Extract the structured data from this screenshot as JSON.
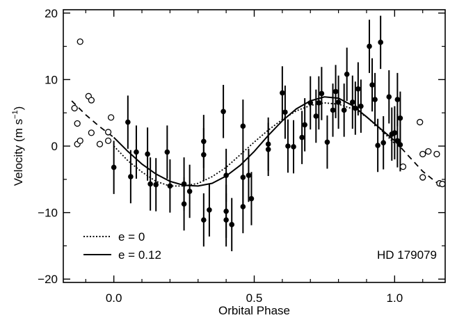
{
  "chart_data": {
    "type": "scatter",
    "xlabel": "Orbital Phase",
    "ylabel": "Velocity (m s",
    "ylabel_sup": "−1",
    "ylabel_close": ")",
    "xlim": [
      -0.18,
      1.18
    ],
    "ylim": [
      -20.5,
      20.5
    ],
    "x_ticks": [
      0.0,
      0.5,
      1.0
    ],
    "x_tick_labels": [
      "0.0",
      "0.5",
      "1.0"
    ],
    "y_ticks": [
      -20,
      -10,
      0,
      10,
      20
    ],
    "y_tick_labels": [
      "−20",
      "−10",
      "0",
      "10",
      "20"
    ],
    "grid": false,
    "annotation": "HD 179079",
    "legend": {
      "placement": "bottom-left",
      "entries": [
        {
          "label": "e = 0",
          "style": "dotted"
        },
        {
          "label": "e = 0.12",
          "style": "solid"
        }
      ]
    },
    "series": [
      {
        "label_display": "e = 0",
        "kind": "curve",
        "style": "dotted",
        "x": [
          0.0,
          0.05,
          0.1,
          0.15,
          0.2,
          0.25,
          0.3,
          0.35,
          0.4,
          0.45,
          0.5,
          0.55,
          0.6,
          0.65,
          0.7,
          0.75,
          0.8,
          0.85,
          0.9,
          0.95,
          1.0
        ],
        "y": [
          0.0,
          -2.2,
          -3.9,
          -5.3,
          -6.0,
          -6.0,
          -5.6,
          -4.6,
          -3.2,
          -1.3,
          0.6,
          2.4,
          4.0,
          5.3,
          6.1,
          6.5,
          6.3,
          5.6,
          4.4,
          2.5,
          0.4
        ]
      },
      {
        "label_display": "e = 0.12",
        "kind": "curve",
        "style": "solid",
        "x": [
          0.0,
          0.05,
          0.1,
          0.15,
          0.2,
          0.25,
          0.3,
          0.35,
          0.4,
          0.45,
          0.5,
          0.55,
          0.6,
          0.65,
          0.7,
          0.75,
          0.8,
          0.85,
          0.9,
          0.95,
          1.0
        ],
        "y": [
          1.3,
          -0.8,
          -2.7,
          -4.2,
          -5.3,
          -5.9,
          -6.0,
          -5.6,
          -4.5,
          -2.9,
          -0.8,
          1.6,
          3.8,
          5.6,
          6.8,
          7.4,
          7.2,
          6.1,
          4.4,
          2.6,
          0.8
        ]
      },
      {
        "kind": "curve-extension",
        "style": "dashed",
        "x": [
          -0.15,
          -0.1,
          -0.05,
          0.0
        ],
        "y": [
          6.8,
          4.7,
          2.9,
          1.3
        ]
      },
      {
        "kind": "curve-extension",
        "style": "dashed",
        "x": [
          1.0,
          1.05,
          1.1,
          1.15
        ],
        "y": [
          0.8,
          -1.5,
          -3.8,
          -5.5
        ]
      },
      {
        "kind": "points",
        "marker": "filled-circle-with-errorbar",
        "points": [
          {
            "x": 0.0,
            "y": -3.2,
            "err": 4.0
          },
          {
            "x": 0.05,
            "y": 3.6,
            "err": 4.0
          },
          {
            "x": 0.06,
            "y": -4.6,
            "err": 4.0
          },
          {
            "x": 0.08,
            "y": -0.9,
            "err": 4.0
          },
          {
            "x": 0.12,
            "y": -1.2,
            "err": 4.0
          },
          {
            "x": 0.13,
            "y": -5.7,
            "err": 4.0
          },
          {
            "x": 0.15,
            "y": -5.8,
            "err": 4.0
          },
          {
            "x": 0.19,
            "y": -0.9,
            "err": 4.0
          },
          {
            "x": 0.2,
            "y": -6.0,
            "err": 4.0
          },
          {
            "x": 0.25,
            "y": -5.7,
            "err": 4.0
          },
          {
            "x": 0.25,
            "y": -8.7,
            "err": 4.0
          },
          {
            "x": 0.27,
            "y": -6.8,
            "err": 4.0
          },
          {
            "x": 0.32,
            "y": 0.7,
            "err": 4.0
          },
          {
            "x": 0.32,
            "y": -1.3,
            "err": 4.0
          },
          {
            "x": 0.32,
            "y": -11.1,
            "err": 4.0
          },
          {
            "x": 0.34,
            "y": -9.6,
            "err": 4.0
          },
          {
            "x": 0.39,
            "y": 5.2,
            "err": 4.0
          },
          {
            "x": 0.4,
            "y": -4.4,
            "err": 4.0
          },
          {
            "x": 0.4,
            "y": -9.8,
            "err": 4.0
          },
          {
            "x": 0.4,
            "y": -11.1,
            "err": 4.0
          },
          {
            "x": 0.42,
            "y": -11.8,
            "err": 4.0
          },
          {
            "x": 0.46,
            "y": 3.0,
            "err": 4.0
          },
          {
            "x": 0.46,
            "y": -4.7,
            "err": 4.0
          },
          {
            "x": 0.46,
            "y": -9.1,
            "err": 4.0
          },
          {
            "x": 0.48,
            "y": -4.4,
            "err": 4.0
          },
          {
            "x": 0.49,
            "y": -7.9,
            "err": 4.0
          },
          {
            "x": 0.55,
            "y": 0.3,
            "err": 4.0
          },
          {
            "x": 0.55,
            "y": -0.5,
            "err": 4.0
          },
          {
            "x": 0.6,
            "y": 8.0,
            "err": 4.0
          },
          {
            "x": 0.61,
            "y": 5.1,
            "err": 4.0
          },
          {
            "x": 0.62,
            "y": 0.0,
            "err": 4.0
          },
          {
            "x": 0.64,
            "y": -0.1,
            "err": 4.0
          },
          {
            "x": 0.67,
            "y": 1.3,
            "err": 4.0
          },
          {
            "x": 0.68,
            "y": 3.2,
            "err": 4.0
          },
          {
            "x": 0.7,
            "y": 6.5,
            "err": 4.0
          },
          {
            "x": 0.72,
            "y": 4.5,
            "err": 4.0
          },
          {
            "x": 0.73,
            "y": 6.5,
            "err": 4.0
          },
          {
            "x": 0.74,
            "y": 7.9,
            "err": 4.0
          },
          {
            "x": 0.76,
            "y": 0.6,
            "err": 4.0
          },
          {
            "x": 0.78,
            "y": 5.4,
            "err": 4.0
          },
          {
            "x": 0.79,
            "y": 8.2,
            "err": 4.0
          },
          {
            "x": 0.8,
            "y": 6.6,
            "err": 4.0
          },
          {
            "x": 0.82,
            "y": 5.4,
            "err": 4.0
          },
          {
            "x": 0.83,
            "y": 10.8,
            "err": 4.0
          },
          {
            "x": 0.85,
            "y": 6.6,
            "err": 4.0
          },
          {
            "x": 0.86,
            "y": 5.7,
            "err": 4.0
          },
          {
            "x": 0.87,
            "y": 8.6,
            "err": 4.0
          },
          {
            "x": 0.88,
            "y": 6.0,
            "err": 4.0
          },
          {
            "x": 0.91,
            "y": 15.0,
            "err": 4.0
          },
          {
            "x": 0.92,
            "y": 9.2,
            "err": 4.0
          },
          {
            "x": 0.93,
            "y": 7.0,
            "err": 4.0
          },
          {
            "x": 0.94,
            "y": 0.1,
            "err": 4.0
          },
          {
            "x": 0.95,
            "y": 15.6,
            "err": 4.0
          },
          {
            "x": 0.96,
            "y": 0.5,
            "err": 4.0
          },
          {
            "x": 0.98,
            "y": 7.4,
            "err": 4.0
          },
          {
            "x": 0.99,
            "y": 1.8,
            "err": 4.0
          },
          {
            "x": 1.01,
            "y": 7.0,
            "err": 4.0
          },
          {
            "x": 1.02,
            "y": 0.2,
            "err": 4.0
          },
          {
            "x": 1.0,
            "y": 2.0,
            "err": 4.0
          },
          {
            "x": 1.01,
            "y": 0.8,
            "err": 4.0
          },
          {
            "x": 1.02,
            "y": 4.2,
            "err": 4.0
          }
        ]
      },
      {
        "kind": "points",
        "marker": "open-circle",
        "points": [
          {
            "x": -0.14,
            "y": 5.7
          },
          {
            "x": -0.13,
            "y": 3.4
          },
          {
            "x": -0.13,
            "y": 0.3
          },
          {
            "x": -0.12,
            "y": 15.7
          },
          {
            "x": -0.12,
            "y": 0.8
          },
          {
            "x": -0.09,
            "y": 7.5
          },
          {
            "x": -0.08,
            "y": 6.9
          },
          {
            "x": -0.08,
            "y": 2.0
          },
          {
            "x": -0.05,
            "y": 0.3
          },
          {
            "x": -0.02,
            "y": 2.1
          },
          {
            "x": -0.02,
            "y": 0.8
          },
          {
            "x": -0.01,
            "y": 4.3
          },
          {
            "x": 1.03,
            "y": -3.1
          },
          {
            "x": 1.09,
            "y": 3.6
          },
          {
            "x": 1.1,
            "y": -1.2
          },
          {
            "x": 1.1,
            "y": -4.7
          },
          {
            "x": 1.12,
            "y": -0.8
          },
          {
            "x": 1.15,
            "y": -1.2
          },
          {
            "x": 1.16,
            "y": -5.6
          },
          {
            "x": 1.17,
            "y": -5.7
          }
        ]
      }
    ]
  }
}
